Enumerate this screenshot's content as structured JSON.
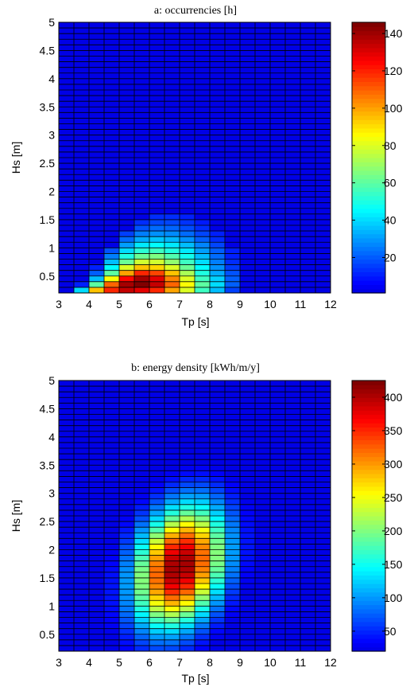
{
  "chart_data": [
    {
      "type": "heatmap",
      "title": "a: occurrencies [h]",
      "xlabel": "Tp [s]",
      "ylabel": "Hs [m]",
      "x_ticks": [
        "3",
        "4",
        "5",
        "6",
        "7",
        "8",
        "9",
        "10",
        "11",
        "12"
      ],
      "y_ticks": [
        "0.5",
        "1",
        "1.5",
        "2",
        "2.5",
        "3",
        "3.5",
        "4",
        "4.5",
        "5"
      ],
      "xlim": [
        3,
        12
      ],
      "ylim": [
        0.2,
        5
      ],
      "cell_width": 0.5,
      "cell_height": 0.1,
      "colorbar_ticks": [
        "20",
        "40",
        "60",
        "80",
        "100",
        "120",
        "140"
      ],
      "colorbar_range": [
        1,
        146
      ],
      "colormap": "jet",
      "grid": true,
      "cells": [
        [
          3.5,
          0.3,
          40
        ],
        [
          4.0,
          0.3,
          95
        ],
        [
          4.5,
          0.3,
          120
        ],
        [
          5.0,
          0.3,
          135
        ],
        [
          5.5,
          0.3,
          130
        ],
        [
          6.0,
          0.3,
          120
        ],
        [
          6.5,
          0.3,
          100
        ],
        [
          7.0,
          0.3,
          80
        ],
        [
          7.5,
          0.3,
          55
        ],
        [
          8.0,
          0.3,
          35
        ],
        [
          8.5,
          0.3,
          15
        ],
        [
          3.5,
          0.4,
          10
        ],
        [
          4.0,
          0.4,
          60
        ],
        [
          4.5,
          0.4,
          110
        ],
        [
          5.0,
          0.4,
          140
        ],
        [
          5.5,
          0.4,
          146
        ],
        [
          6.0,
          0.4,
          135
        ],
        [
          6.5,
          0.4,
          110
        ],
        [
          7.0,
          0.4,
          85
        ],
        [
          7.5,
          0.4,
          60
        ],
        [
          8.0,
          0.4,
          40
        ],
        [
          8.5,
          0.4,
          20
        ],
        [
          4.0,
          0.5,
          35
        ],
        [
          4.5,
          0.5,
          85
        ],
        [
          5.0,
          0.5,
          125
        ],
        [
          5.5,
          0.5,
          140
        ],
        [
          6.0,
          0.5,
          130
        ],
        [
          6.5,
          0.5,
          105
        ],
        [
          7.0,
          0.5,
          80
        ],
        [
          7.5,
          0.5,
          55
        ],
        [
          8.0,
          0.5,
          38
        ],
        [
          8.5,
          0.5,
          20
        ],
        [
          4.0,
          0.6,
          20
        ],
        [
          4.5,
          0.6,
          60
        ],
        [
          5.0,
          0.6,
          100
        ],
        [
          5.5,
          0.6,
          120
        ],
        [
          6.0,
          0.6,
          115
        ],
        [
          6.5,
          0.6,
          95
        ],
        [
          7.0,
          0.6,
          72
        ],
        [
          7.5,
          0.6,
          50
        ],
        [
          8.0,
          0.6,
          32
        ],
        [
          8.5,
          0.6,
          18
        ],
        [
          4.0,
          0.7,
          10
        ],
        [
          4.5,
          0.7,
          45
        ],
        [
          5.0,
          0.7,
          80
        ],
        [
          5.5,
          0.7,
          95
        ],
        [
          6.0,
          0.7,
          92
        ],
        [
          6.5,
          0.7,
          80
        ],
        [
          7.0,
          0.7,
          62
        ],
        [
          7.5,
          0.7,
          45
        ],
        [
          8.0,
          0.7,
          28
        ],
        [
          8.5,
          0.7,
          14
        ],
        [
          4.5,
          0.8,
          35
        ],
        [
          5.0,
          0.8,
          62
        ],
        [
          5.5,
          0.8,
          78
        ],
        [
          6.0,
          0.8,
          78
        ],
        [
          6.5,
          0.8,
          68
        ],
        [
          7.0,
          0.8,
          55
        ],
        [
          7.5,
          0.8,
          40
        ],
        [
          8.0,
          0.8,
          25
        ],
        [
          8.5,
          0.8,
          12
        ],
        [
          4.5,
          0.9,
          25
        ],
        [
          5.0,
          0.9,
          50
        ],
        [
          5.5,
          0.9,
          62
        ],
        [
          6.0,
          0.9,
          65
        ],
        [
          6.5,
          0.9,
          58
        ],
        [
          7.0,
          0.9,
          48
        ],
        [
          7.5,
          0.9,
          35
        ],
        [
          8.0,
          0.9,
          22
        ],
        [
          8.5,
          0.9,
          10
        ],
        [
          4.5,
          1.0,
          18
        ],
        [
          5.0,
          1.0,
          40
        ],
        [
          5.5,
          1.0,
          52
        ],
        [
          6.0,
          1.0,
          55
        ],
        [
          6.5,
          1.0,
          50
        ],
        [
          7.0,
          1.0,
          42
        ],
        [
          7.5,
          1.0,
          30
        ],
        [
          8.0,
          1.0,
          20
        ],
        [
          8.5,
          1.0,
          10
        ],
        [
          5.0,
          1.1,
          30
        ],
        [
          5.5,
          1.1,
          42
        ],
        [
          6.0,
          1.1,
          45
        ],
        [
          6.5,
          1.1,
          42
        ],
        [
          7.0,
          1.1,
          35
        ],
        [
          7.5,
          1.1,
          26
        ],
        [
          8.0,
          1.1,
          16
        ],
        [
          5.0,
          1.2,
          22
        ],
        [
          5.5,
          1.2,
          32
        ],
        [
          6.0,
          1.2,
          36
        ],
        [
          6.5,
          1.2,
          34
        ],
        [
          7.0,
          1.2,
          28
        ],
        [
          7.5,
          1.2,
          20
        ],
        [
          8.0,
          1.2,
          12
        ],
        [
          5.0,
          1.3,
          15
        ],
        [
          5.5,
          1.3,
          25
        ],
        [
          6.0,
          1.3,
          28
        ],
        [
          6.5,
          1.3,
          27
        ],
        [
          7.0,
          1.3,
          22
        ],
        [
          7.5,
          1.3,
          16
        ],
        [
          8.0,
          1.3,
          10
        ],
        [
          5.5,
          1.4,
          18
        ],
        [
          6.0,
          1.4,
          22
        ],
        [
          6.5,
          1.4,
          21
        ],
        [
          7.0,
          1.4,
          17
        ],
        [
          7.5,
          1.4,
          12
        ],
        [
          5.5,
          1.5,
          12
        ],
        [
          6.0,
          1.5,
          16
        ],
        [
          6.5,
          1.5,
          16
        ],
        [
          7.0,
          1.5,
          13
        ],
        [
          7.5,
          1.5,
          9
        ],
        [
          6.0,
          1.6,
          12
        ],
        [
          6.5,
          1.6,
          12
        ],
        [
          7.0,
          1.6,
          10
        ]
      ]
    },
    {
      "type": "heatmap",
      "title": "b: energy density [kWh/m/y]",
      "xlabel": "Tp [s]",
      "ylabel": "Hs [m]",
      "x_ticks": [
        "3",
        "4",
        "5",
        "6",
        "7",
        "8",
        "9",
        "10",
        "11",
        "12"
      ],
      "y_ticks": [
        "0.5",
        "1",
        "1.5",
        "2",
        "2.5",
        "3",
        "3.5",
        "4",
        "4.5",
        "5"
      ],
      "xlim": [
        3,
        12
      ],
      "ylim": [
        0.2,
        5
      ],
      "cell_width": 0.5,
      "cell_height": 0.1,
      "colorbar_ticks": [
        "50",
        "100",
        "150",
        "200",
        "250",
        "300",
        "350",
        "400"
      ],
      "colorbar_range": [
        20,
        425
      ],
      "colormap": "jet",
      "grid": true,
      "peak": {
        "x": 7.0,
        "y": 1.7,
        "value": 420
      },
      "spread": {
        "sx": 1.0,
        "sy": 0.75,
        "tilt": 0.35
      }
    }
  ]
}
